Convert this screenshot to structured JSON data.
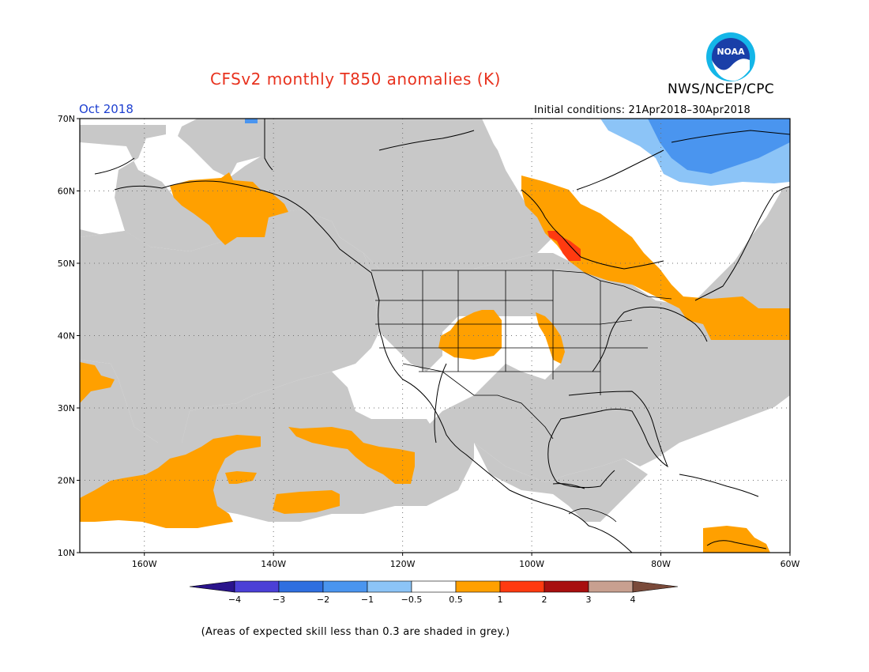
{
  "header": {
    "title": "CFSv2 monthly T850 anomalies (K)",
    "agency": "NWS/NCEP/CPC",
    "logo_text": "NOAA",
    "period": "Oct 2018",
    "initial_conditions": "Initial conditions: 21Apr2018–30Apr2018"
  },
  "map": {
    "lat_ticks": [
      "70N",
      "60N",
      "50N",
      "40N",
      "30N",
      "20N",
      "10N"
    ],
    "lon_ticks": [
      "160W",
      "140W",
      "120W",
      "100W",
      "80W",
      "60W"
    ],
    "extent": {
      "lon_min": -170,
      "lon_max": -60,
      "lat_min": 10,
      "lat_max": 70
    }
  },
  "colorbar": {
    "labels": [
      "−4",
      "−3",
      "−2",
      "−1",
      "−0.5",
      "0.5",
      "1",
      "2",
      "3",
      "4"
    ],
    "colors": [
      "#2a148c",
      "#4b3fd6",
      "#2f6fe0",
      "#4a95ef",
      "#8cc4f7",
      "#ffffff",
      "#ffa000",
      "#ff3a10",
      "#a80f0f",
      "#c8a090",
      "#7a4a3a"
    ]
  },
  "footnote": "(Areas of expected skill less than 0.3 are shaded in grey.)"
}
